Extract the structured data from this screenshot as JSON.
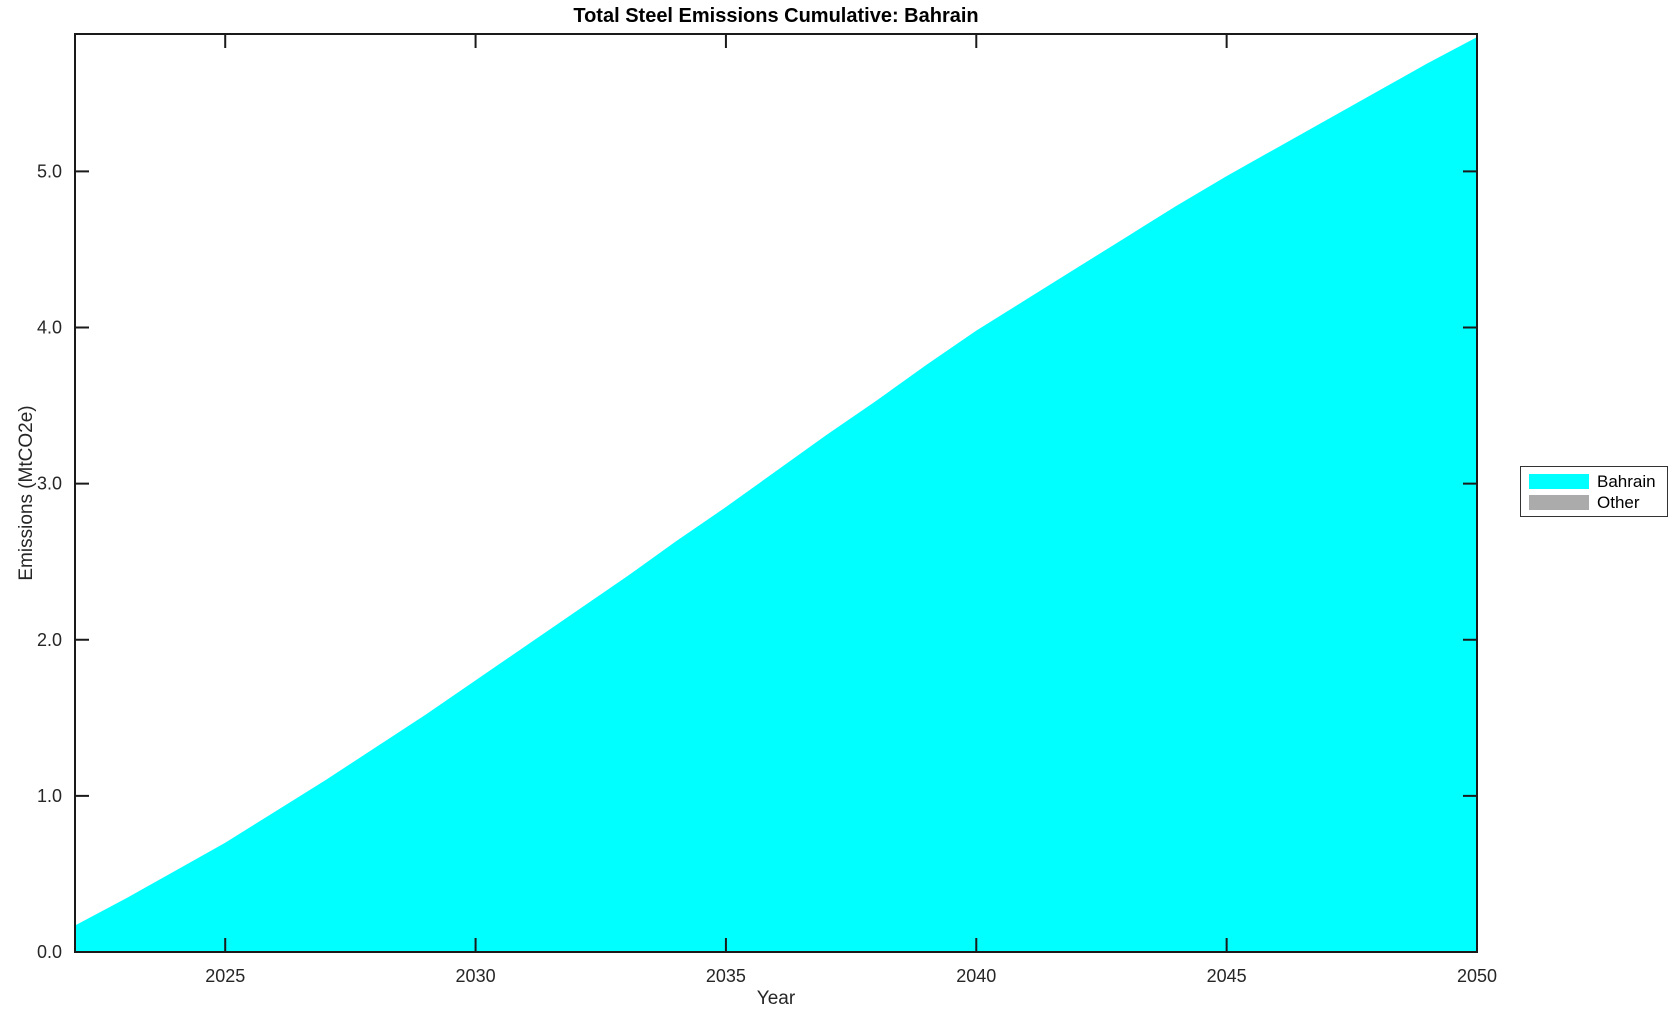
{
  "chart_data": {
    "type": "area",
    "stacked": true,
    "title": "Total Steel Emissions Cumulative: Bahrain",
    "xlabel": "Year",
    "ylabel": "Emissions (MtCO2e)",
    "xlim": [
      2022,
      2050
    ],
    "ylim": [
      0,
      5.88
    ],
    "grid": false,
    "background_color": "#ffffff",
    "axis_color": "#1a1a1a",
    "legend_position": "right-outside",
    "x_ticks": {
      "values": [
        2025,
        2030,
        2035,
        2040,
        2045,
        2050
      ],
      "labels": [
        "2025",
        "2030",
        "2035",
        "2040",
        "2045",
        "2050"
      ]
    },
    "y_ticks": {
      "values": [
        0,
        1,
        2,
        3,
        4,
        5
      ],
      "labels": [
        "0.0",
        "1.0",
        "2.0",
        "3.0",
        "4.0",
        "5.0"
      ]
    },
    "x": [
      2022,
      2023,
      2024,
      2025,
      2026,
      2027,
      2028,
      2029,
      2030,
      2031,
      2032,
      2033,
      2034,
      2035,
      2036,
      2037,
      2038,
      2039,
      2040,
      2041,
      2042,
      2043,
      2044,
      2045,
      2046,
      2047,
      2048,
      2049,
      2050
    ],
    "series": [
      {
        "name": "Bahrain",
        "color": "#00ffff",
        "values": [
          0.17,
          0.34,
          0.52,
          0.7,
          0.9,
          1.1,
          1.31,
          1.52,
          1.74,
          1.96,
          2.18,
          2.4,
          2.63,
          2.85,
          3.08,
          3.31,
          3.53,
          3.76,
          3.98,
          4.18,
          4.38,
          4.58,
          4.78,
          4.97,
          5.15,
          5.33,
          5.51,
          5.69,
          5.86
        ]
      },
      {
        "name": "Other",
        "color": "#ababab",
        "values": [
          0,
          0,
          0,
          0,
          0,
          0,
          0,
          0,
          0,
          0,
          0,
          0,
          0,
          0,
          0,
          0,
          0,
          0,
          0,
          0,
          0,
          0,
          0,
          0,
          0,
          0,
          0,
          0,
          0
        ]
      }
    ]
  }
}
